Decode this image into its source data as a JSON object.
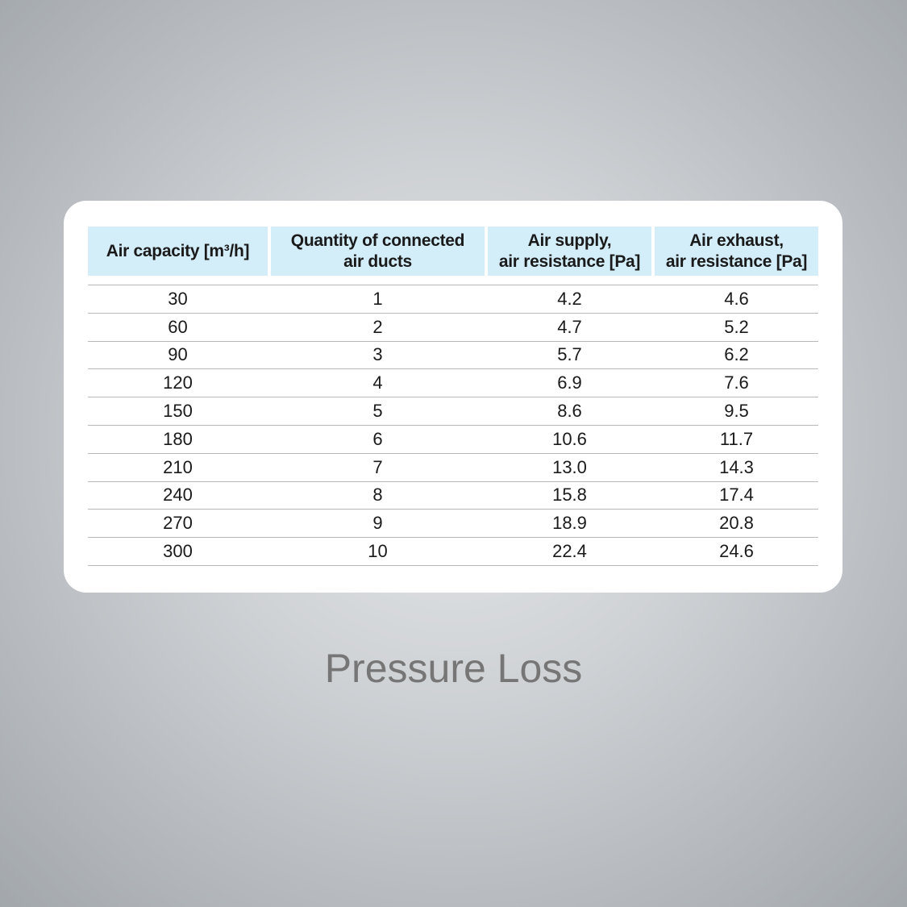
{
  "table": {
    "header": [
      [
        "Air capacity [m³/h]"
      ],
      [
        "Quantity of connected",
        "air ducts"
      ],
      [
        "Air supply,",
        "air resistance [Pa]"
      ],
      [
        "Air exhaust,",
        "air resistance [Pa]"
      ]
    ],
    "rows": [
      [
        "30",
        "1",
        "4.2",
        "4.6"
      ],
      [
        "60",
        "2",
        "4.7",
        "5.2"
      ],
      [
        "90",
        "3",
        "5.7",
        "6.2"
      ],
      [
        "120",
        "4",
        "6.9",
        "7.6"
      ],
      [
        "150",
        "5",
        "8.6",
        "9.5"
      ],
      [
        "180",
        "6",
        "10.6",
        "11.7"
      ],
      [
        "210",
        "7",
        "13.0",
        "14.3"
      ],
      [
        "240",
        "8",
        "15.8",
        "17.4"
      ],
      [
        "270",
        "9",
        "18.9",
        "20.8"
      ],
      [
        "300",
        "10",
        "22.4",
        "24.6"
      ]
    ]
  },
  "caption": "Pressure Loss"
}
